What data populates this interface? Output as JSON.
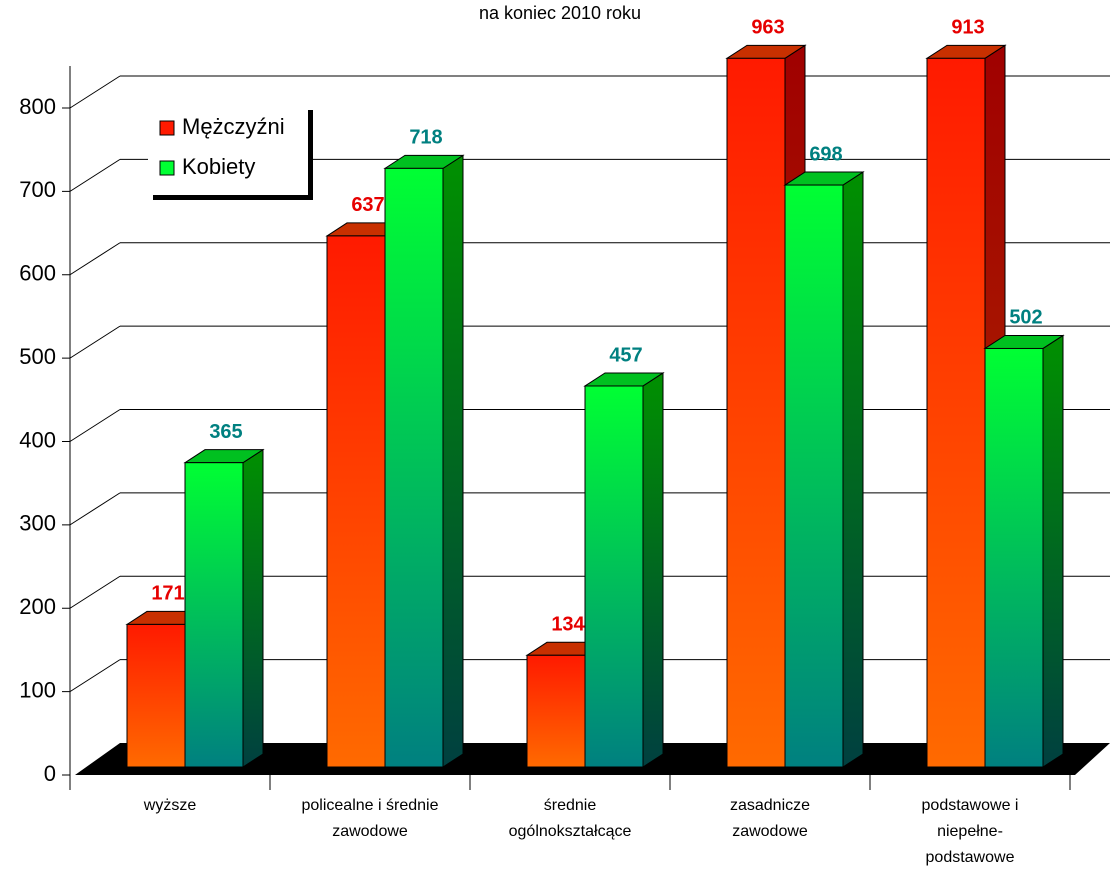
{
  "chart_data": {
    "type": "bar3d",
    "title": "na koniec 2010 roku",
    "categories": [
      [
        "wyższe"
      ],
      [
        "policealne i średnie",
        "zawodowe"
      ],
      [
        "średnie",
        "ogólnokształcące"
      ],
      [
        "zasadnicze",
        "zawodowe"
      ],
      [
        "podstawowe i",
        "niepełne-",
        "podstawowe"
      ]
    ],
    "series": [
      {
        "name": "Mężczyźni",
        "color": "#ff1a00",
        "label_color": "#e60000",
        "values": [
          171,
          637,
          134,
          963,
          913
        ]
      },
      {
        "name": "Kobiety",
        "color": "#00ff33",
        "label_color": "#008080",
        "values": [
          365,
          718,
          457,
          698,
          502
        ]
      }
    ],
    "ylim": [
      0,
      850
    ],
    "yticks": [
      0,
      100,
      200,
      300,
      400,
      500,
      600,
      700,
      800
    ],
    "grid": true,
    "legend": "upper left"
  }
}
